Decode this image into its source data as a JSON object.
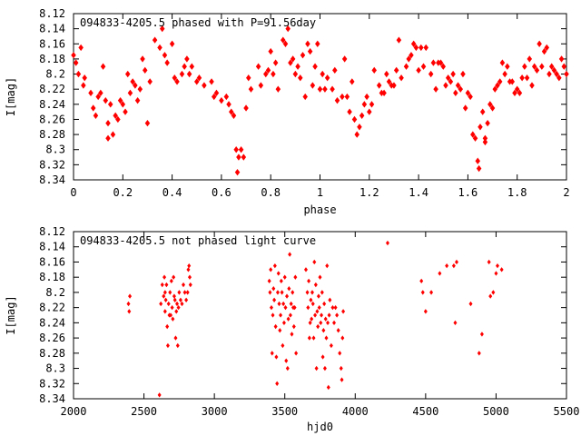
{
  "chart_data": [
    {
      "type": "scatter",
      "title": "094833-4205.5 phased with P=91.56day",
      "xlabel": "phase",
      "ylabel": "I[mag]",
      "xlim": [
        0,
        2
      ],
      "ylim": [
        8.12,
        8.34
      ],
      "y_inverted": true,
      "x_ticks": [
        "0",
        "0.2",
        "0.4",
        "0.6",
        "0.8",
        "1",
        "1.2",
        "1.4",
        "1.6",
        "1.8",
        "2"
      ],
      "y_ticks": [
        "8.12",
        "8.14",
        "8.16",
        "8.18",
        "8.2",
        "8.22",
        "8.24",
        "8.26",
        "8.28",
        "8.3",
        "8.32",
        "8.34"
      ],
      "marker_color": "#ff0000",
      "grid": false,
      "points": [
        [
          0.0,
          8.175
        ],
        [
          0.01,
          8.185
        ],
        [
          0.02,
          8.2
        ],
        [
          0.03,
          8.165
        ],
        [
          0.04,
          8.215
        ],
        [
          0.045,
          8.205
        ],
        [
          0.07,
          8.225
        ],
        [
          0.08,
          8.245
        ],
        [
          0.09,
          8.255
        ],
        [
          0.1,
          8.23
        ],
        [
          0.11,
          8.225
        ],
        [
          0.12,
          8.19
        ],
        [
          0.13,
          8.235
        ],
        [
          0.14,
          8.265
        ],
        [
          0.14,
          8.285
        ],
        [
          0.15,
          8.24
        ],
        [
          0.16,
          8.28
        ],
        [
          0.17,
          8.255
        ],
        [
          0.18,
          8.26
        ],
        [
          0.19,
          8.235
        ],
        [
          0.2,
          8.24
        ],
        [
          0.21,
          8.25
        ],
        [
          0.22,
          8.2
        ],
        [
          0.23,
          8.225
        ],
        [
          0.24,
          8.21
        ],
        [
          0.25,
          8.215
        ],
        [
          0.26,
          8.235
        ],
        [
          0.27,
          8.22
        ],
        [
          0.28,
          8.18
        ],
        [
          0.29,
          8.195
        ],
        [
          0.3,
          8.265
        ],
        [
          0.31,
          8.21
        ],
        [
          0.33,
          8.155
        ],
        [
          0.35,
          8.165
        ],
        [
          0.36,
          8.14
        ],
        [
          0.37,
          8.175
        ],
        [
          0.38,
          8.185
        ],
        [
          0.4,
          8.16
        ],
        [
          0.41,
          8.205
        ],
        [
          0.42,
          8.21
        ],
        [
          0.44,
          8.2
        ],
        [
          0.45,
          8.19
        ],
        [
          0.46,
          8.18
        ],
        [
          0.47,
          8.2
        ],
        [
          0.48,
          8.19
        ],
        [
          0.5,
          8.21
        ],
        [
          0.51,
          8.205
        ],
        [
          0.53,
          8.215
        ],
        [
          0.56,
          8.21
        ],
        [
          0.57,
          8.23
        ],
        [
          0.58,
          8.225
        ],
        [
          0.6,
          8.235
        ],
        [
          0.62,
          8.23
        ],
        [
          0.63,
          8.24
        ],
        [
          0.64,
          8.25
        ],
        [
          0.65,
          8.255
        ],
        [
          0.66,
          8.3
        ],
        [
          0.665,
          8.33
        ],
        [
          0.67,
          8.31
        ],
        [
          0.68,
          8.3
        ],
        [
          0.69,
          8.31
        ],
        [
          0.7,
          8.245
        ],
        [
          0.71,
          8.205
        ],
        [
          0.72,
          8.22
        ],
        [
          0.75,
          8.19
        ],
        [
          0.76,
          8.215
        ],
        [
          0.78,
          8.2
        ],
        [
          0.79,
          8.195
        ],
        [
          0.8,
          8.17
        ],
        [
          0.81,
          8.2
        ],
        [
          0.82,
          8.185
        ],
        [
          0.83,
          8.22
        ],
        [
          0.85,
          8.155
        ],
        [
          0.86,
          8.16
        ],
        [
          0.87,
          8.14
        ],
        [
          0.88,
          8.185
        ],
        [
          0.89,
          8.18
        ],
        [
          0.9,
          8.2
        ],
        [
          0.91,
          8.19
        ],
        [
          0.92,
          8.205
        ],
        [
          0.93,
          8.175
        ],
        [
          0.94,
          8.23
        ],
        [
          0.95,
          8.16
        ],
        [
          0.96,
          8.17
        ],
        [
          0.97,
          8.215
        ],
        [
          0.98,
          8.19
        ],
        [
          0.99,
          8.16
        ],
        [
          1.0,
          8.22
        ],
        [
          1.01,
          8.2
        ],
        [
          1.02,
          8.22
        ],
        [
          1.03,
          8.205
        ],
        [
          1.05,
          8.22
        ],
        [
          1.06,
          8.195
        ],
        [
          1.07,
          8.235
        ],
        [
          1.09,
          8.23
        ],
        [
          1.1,
          8.18
        ],
        [
          1.11,
          8.23
        ],
        [
          1.12,
          8.25
        ],
        [
          1.13,
          8.21
        ],
        [
          1.14,
          8.26
        ],
        [
          1.15,
          8.28
        ],
        [
          1.16,
          8.27
        ],
        [
          1.17,
          8.255
        ],
        [
          1.18,
          8.24
        ],
        [
          1.19,
          8.23
        ],
        [
          1.2,
          8.25
        ],
        [
          1.21,
          8.24
        ],
        [
          1.22,
          8.195
        ],
        [
          1.24,
          8.215
        ],
        [
          1.25,
          8.225
        ],
        [
          1.26,
          8.225
        ],
        [
          1.27,
          8.2
        ],
        [
          1.28,
          8.21
        ],
        [
          1.29,
          8.215
        ],
        [
          1.3,
          8.215
        ],
        [
          1.31,
          8.195
        ],
        [
          1.32,
          8.155
        ],
        [
          1.33,
          8.205
        ],
        [
          1.35,
          8.19
        ],
        [
          1.36,
          8.18
        ],
        [
          1.37,
          8.175
        ],
        [
          1.38,
          8.16
        ],
        [
          1.39,
          8.165
        ],
        [
          1.4,
          8.195
        ],
        [
          1.41,
          8.165
        ],
        [
          1.42,
          8.19
        ],
        [
          1.43,
          8.165
        ],
        [
          1.45,
          8.2
        ],
        [
          1.46,
          8.185
        ],
        [
          1.47,
          8.22
        ],
        [
          1.48,
          8.185
        ],
        [
          1.49,
          8.185
        ],
        [
          1.5,
          8.19
        ],
        [
          1.51,
          8.215
        ],
        [
          1.52,
          8.205
        ],
        [
          1.53,
          8.21
        ],
        [
          1.54,
          8.2
        ],
        [
          1.55,
          8.225
        ],
        [
          1.56,
          8.215
        ],
        [
          1.57,
          8.22
        ],
        [
          1.58,
          8.2
        ],
        [
          1.59,
          8.245
        ],
        [
          1.6,
          8.225
        ],
        [
          1.61,
          8.23
        ],
        [
          1.62,
          8.28
        ],
        [
          1.63,
          8.285
        ],
        [
          1.64,
          8.315
        ],
        [
          1.645,
          8.325
        ],
        [
          1.65,
          8.27
        ],
        [
          1.66,
          8.25
        ],
        [
          1.67,
          8.285
        ],
        [
          1.67,
          8.29
        ],
        [
          1.68,
          8.265
        ],
        [
          1.69,
          8.24
        ],
        [
          1.7,
          8.245
        ],
        [
          1.71,
          8.22
        ],
        [
          1.72,
          8.215
        ],
        [
          1.73,
          8.21
        ],
        [
          1.74,
          8.185
        ],
        [
          1.75,
          8.2
        ],
        [
          1.76,
          8.19
        ],
        [
          1.77,
          8.21
        ],
        [
          1.78,
          8.21
        ],
        [
          1.79,
          8.225
        ],
        [
          1.8,
          8.22
        ],
        [
          1.81,
          8.225
        ],
        [
          1.82,
          8.205
        ],
        [
          1.83,
          8.19
        ],
        [
          1.84,
          8.205
        ],
        [
          1.85,
          8.18
        ],
        [
          1.86,
          8.215
        ],
        [
          1.87,
          8.19
        ],
        [
          1.88,
          8.195
        ],
        [
          1.89,
          8.16
        ],
        [
          1.9,
          8.19
        ],
        [
          1.91,
          8.17
        ],
        [
          1.92,
          8.165
        ],
        [
          1.93,
          8.2
        ],
        [
          1.94,
          8.19
        ],
        [
          1.95,
          8.195
        ],
        [
          1.96,
          8.2
        ],
        [
          1.97,
          8.205
        ],
        [
          1.98,
          8.18
        ],
        [
          1.99,
          8.19
        ],
        [
          2.0,
          8.2
        ]
      ]
    },
    {
      "type": "scatter",
      "title": "094833-4205.5 not phased light curve",
      "xlabel": "hjd0",
      "ylabel": "I[mag]",
      "xlim": [
        2000,
        5500
      ],
      "ylim": [
        8.12,
        8.34
      ],
      "y_inverted": true,
      "x_ticks": [
        "2000",
        "2500",
        "3000",
        "3500",
        "4000",
        "4500",
        "5000",
        "5500"
      ],
      "y_ticks": [
        "8.12",
        "8.14",
        "8.16",
        "8.18",
        "8.2",
        "8.22",
        "8.24",
        "8.26",
        "8.28",
        "8.3",
        "8.32",
        "8.34"
      ],
      "marker_color": "#ff0000",
      "grid": false,
      "points": [
        [
          2390,
          8.215
        ],
        [
          2400,
          8.205
        ],
        [
          2395,
          8.225
        ],
        [
          2610,
          8.335
        ],
        [
          2620,
          8.215
        ],
        [
          2630,
          8.19
        ],
        [
          2640,
          8.205
        ],
        [
          2645,
          8.18
        ],
        [
          2650,
          8.2
        ],
        [
          2650,
          8.225
        ],
        [
          2655,
          8.21
        ],
        [
          2660,
          8.19
        ],
        [
          2665,
          8.245
        ],
        [
          2670,
          8.27
        ],
        [
          2675,
          8.215
        ],
        [
          2680,
          8.23
        ],
        [
          2685,
          8.2
        ],
        [
          2690,
          8.23
        ],
        [
          2695,
          8.185
        ],
        [
          2700,
          8.22
        ],
        [
          2705,
          8.235
        ],
        [
          2710,
          8.18
        ],
        [
          2715,
          8.205
        ],
        [
          2720,
          8.21
        ],
        [
          2725,
          8.26
        ],
        [
          2730,
          8.225
        ],
        [
          2735,
          8.215
        ],
        [
          2740,
          8.27
        ],
        [
          2745,
          8.22
        ],
        [
          2750,
          8.2
        ],
        [
          2760,
          8.21
        ],
        [
          2770,
          8.215
        ],
        [
          2780,
          8.19
        ],
        [
          2790,
          8.2
        ],
        [
          2800,
          8.21
        ],
        [
          2810,
          8.2
        ],
        [
          2815,
          8.17
        ],
        [
          2820,
          8.165
        ],
        [
          2825,
          8.18
        ],
        [
          2830,
          8.19
        ],
        [
          3390,
          8.185
        ],
        [
          3395,
          8.2
        ],
        [
          3400,
          8.17
        ],
        [
          3405,
          8.22
        ],
        [
          3410,
          8.28
        ],
        [
          3415,
          8.23
        ],
        [
          3420,
          8.195
        ],
        [
          3425,
          8.21
        ],
        [
          3430,
          8.165
        ],
        [
          3435,
          8.245
        ],
        [
          3440,
          8.285
        ],
        [
          3445,
          8.32
        ],
        [
          3450,
          8.2
        ],
        [
          3455,
          8.175
        ],
        [
          3460,
          8.215
        ],
        [
          3465,
          8.25
        ],
        [
          3470,
          8.23
        ],
        [
          3475,
          8.185
        ],
        [
          3480,
          8.2
        ],
        [
          3485,
          8.27
        ],
        [
          3490,
          8.215
        ],
        [
          3495,
          8.24
        ],
        [
          3500,
          8.18
        ],
        [
          3505,
          8.22
        ],
        [
          3510,
          8.29
        ],
        [
          3515,
          8.205
        ],
        [
          3520,
          8.3
        ],
        [
          3525,
          8.235
        ],
        [
          3530,
          8.195
        ],
        [
          3535,
          8.15
        ],
        [
          3540,
          8.23
        ],
        [
          3545,
          8.215
        ],
        [
          3550,
          8.255
        ],
        [
          3555,
          8.2
        ],
        [
          3560,
          8.22
        ],
        [
          3565,
          8.245
        ],
        [
          3570,
          8.22
        ],
        [
          3575,
          8.18
        ],
        [
          3580,
          8.28
        ],
        [
          3650,
          8.17
        ],
        [
          3660,
          8.2
        ],
        [
          3665,
          8.22
        ],
        [
          3670,
          8.185
        ],
        [
          3675,
          8.26
        ],
        [
          3680,
          8.24
        ],
        [
          3685,
          8.21
        ],
        [
          3690,
          8.235
        ],
        [
          3695,
          8.2
        ],
        [
          3700,
          8.215
        ],
        [
          3705,
          8.26
        ],
        [
          3710,
          8.16
        ],
        [
          3715,
          8.23
        ],
        [
          3720,
          8.19
        ],
        [
          3725,
          8.3
        ],
        [
          3730,
          8.225
        ],
        [
          3735,
          8.245
        ],
        [
          3740,
          8.205
        ],
        [
          3745,
          8.22
        ],
        [
          3750,
          8.18
        ],
        [
          3755,
          8.24
        ],
        [
          3760,
          8.23
        ],
        [
          3765,
          8.2
        ],
        [
          3770,
          8.285
        ],
        [
          3775,
          8.25
        ],
        [
          3780,
          8.215
        ],
        [
          3785,
          8.3
        ],
        [
          3790,
          8.235
        ],
        [
          3795,
          8.26
        ],
        [
          3800,
          8.165
        ],
        [
          3805,
          8.24
        ],
        [
          3810,
          8.325
        ],
        [
          3815,
          8.23
        ],
        [
          3820,
          8.21
        ],
        [
          3830,
          8.27
        ],
        [
          3840,
          8.22
        ],
        [
          3850,
          8.24
        ],
        [
          3860,
          8.22
        ],
        [
          3870,
          8.23
        ],
        [
          3880,
          8.25
        ],
        [
          3890,
          8.28
        ],
        [
          3900,
          8.3
        ],
        [
          3905,
          8.315
        ],
        [
          3910,
          8.26
        ],
        [
          3915,
          8.225
        ],
        [
          4230,
          8.135
        ],
        [
          4470,
          8.185
        ],
        [
          4480,
          8.2
        ],
        [
          4500,
          8.225
        ],
        [
          4540,
          8.2
        ],
        [
          4600,
          8.175
        ],
        [
          4650,
          8.165
        ],
        [
          4700,
          8.165
        ],
        [
          4710,
          8.24
        ],
        [
          4720,
          8.16
        ],
        [
          4820,
          8.215
        ],
        [
          4880,
          8.28
        ],
        [
          4900,
          8.255
        ],
        [
          4950,
          8.16
        ],
        [
          4960,
          8.205
        ],
        [
          4980,
          8.2
        ],
        [
          5000,
          8.175
        ],
        [
          5010,
          8.165
        ],
        [
          5040,
          8.17
        ]
      ]
    }
  ]
}
